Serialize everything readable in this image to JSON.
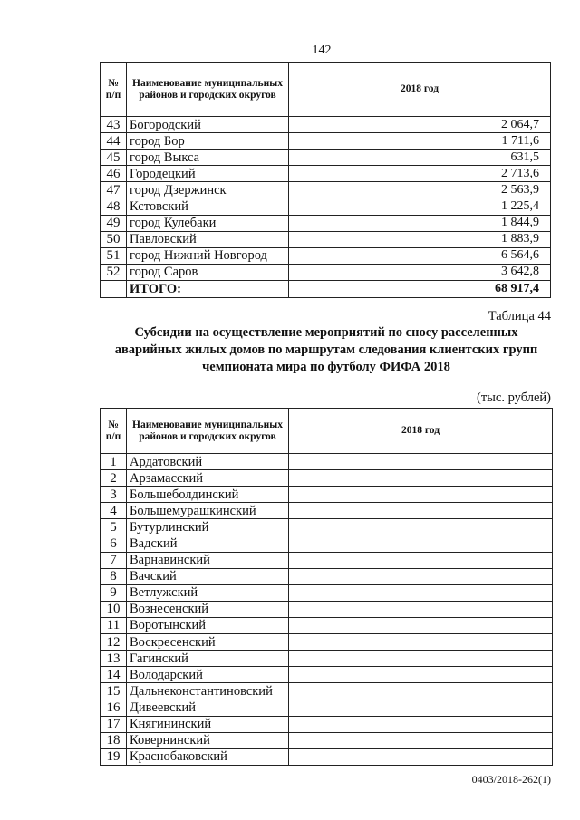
{
  "page_number": "142",
  "table1": {
    "headers": {
      "num": "№ п/п",
      "name": "Наименование муниципальных районов и городских округов",
      "year": "2018 год"
    },
    "rows": [
      {
        "num": "43",
        "name": "Богородский",
        "value": "2 064,7"
      },
      {
        "num": "44",
        "name": "город Бор",
        "value": "1 711,6"
      },
      {
        "num": "45",
        "name": "город Выкса",
        "value": "631,5"
      },
      {
        "num": "46",
        "name": "Городецкий",
        "value": "2 713,6"
      },
      {
        "num": "47",
        "name": "город Дзержинск",
        "value": "2 563,9"
      },
      {
        "num": "48",
        "name": "Кстовский",
        "value": "1 225,4"
      },
      {
        "num": "49",
        "name": "город Кулебаки",
        "value": "1 844,9"
      },
      {
        "num": "50",
        "name": "Павловский",
        "value": "1 883,9"
      },
      {
        "num": "51",
        "name": "город Нижний Новгород",
        "value": "6 564,6"
      },
      {
        "num": "52",
        "name": "город Саров",
        "value": "3 642,8"
      }
    ],
    "total": {
      "label": "ИТОГО:",
      "value": "68 917,4"
    }
  },
  "table_label": "Таблица 44",
  "title_lines": [
    "Субсидии на осуществление мероприятий по сносу расселенных",
    "аварийных жилых домов по маршрутам следования клиентских групп",
    "чемпионата мира по футболу ФИФА 2018"
  ],
  "units": "(тыс. рублей)",
  "table2": {
    "headers": {
      "num": "№ п/п",
      "name": "Наименование муниципальных районов и городских округов",
      "year": "2018 год"
    },
    "rows": [
      {
        "num": "1",
        "name": "Ардатовский"
      },
      {
        "num": "2",
        "name": "Арзамасский"
      },
      {
        "num": "3",
        "name": "Большеболдинский"
      },
      {
        "num": "4",
        "name": "Большемурашкинский"
      },
      {
        "num": "5",
        "name": "Бутурлинский"
      },
      {
        "num": "6",
        "name": "Вадский"
      },
      {
        "num": "7",
        "name": "Варнавинский"
      },
      {
        "num": "8",
        "name": "Вачский"
      },
      {
        "num": "9",
        "name": "Ветлужский"
      },
      {
        "num": "10",
        "name": "Вознесенский"
      },
      {
        "num": "11",
        "name": "Воротынский"
      },
      {
        "num": "12",
        "name": "Воскресенский"
      },
      {
        "num": "13",
        "name": "Гагинский"
      },
      {
        "num": "14",
        "name": "Володарский"
      },
      {
        "num": "15",
        "name": "Дальнеконстантиновский"
      },
      {
        "num": "16",
        "name": "Дивеевский"
      },
      {
        "num": "17",
        "name": "Княгининский"
      },
      {
        "num": "18",
        "name": "Ковернинский"
      },
      {
        "num": "19",
        "name": "Краснобаковский"
      }
    ]
  },
  "footer_code": "0403/2018-262(1)"
}
